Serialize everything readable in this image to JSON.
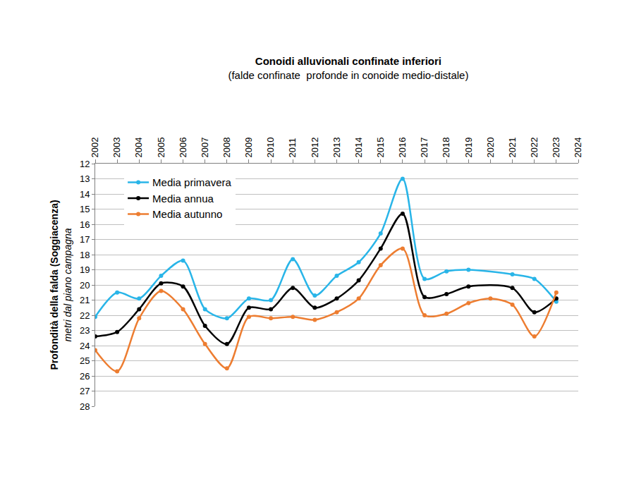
{
  "chart_data": {
    "type": "line",
    "title": "Conoidi alluvionali confinate inferiori",
    "subtitle": "(falde confinate  profonde in conoide medio-distale)",
    "ylabel": "Profondità della falda (Soggiacenza)",
    "ylabel_sub": "metri dal piano campagna",
    "x": [
      2002,
      2003,
      2004,
      2005,
      2006,
      2007,
      2008,
      2009,
      2010,
      2011,
      2012,
      2013,
      2014,
      2015,
      2016,
      2017,
      2018,
      2019,
      2020,
      2021,
      2022,
      2023
    ],
    "series": [
      {
        "name": "Media primavera",
        "color": "#29b5e8",
        "values": [
          22.1,
          20.5,
          20.9,
          19.4,
          18.4,
          21.6,
          22.2,
          20.9,
          21.0,
          18.3,
          20.7,
          19.4,
          18.5,
          16.6,
          13.0,
          19.6,
          19.1,
          19.0,
          null,
          19.3,
          19.6,
          21.1
        ]
      },
      {
        "name": "Media annua",
        "color": "#000000",
        "values": [
          23.4,
          23.1,
          21.6,
          19.9,
          20.1,
          22.7,
          23.9,
          21.5,
          21.6,
          20.2,
          21.5,
          20.9,
          19.7,
          17.6,
          15.3,
          20.8,
          20.6,
          20.1,
          null,
          20.2,
          21.8,
          20.9
        ]
      },
      {
        "name": "Media autunno",
        "color": "#ed7d31",
        "values": [
          24.3,
          25.7,
          22.2,
          20.4,
          21.6,
          23.9,
          25.5,
          22.1,
          22.2,
          22.1,
          22.3,
          21.8,
          20.9,
          18.7,
          17.6,
          22.0,
          21.9,
          21.2,
          20.9,
          21.3,
          23.4,
          20.5
        ]
      }
    ],
    "xlim": [
      2002,
      2024
    ],
    "xticks": [
      2002,
      2003,
      2004,
      2005,
      2006,
      2007,
      2008,
      2009,
      2010,
      2011,
      2012,
      2013,
      2014,
      2015,
      2016,
      2017,
      2018,
      2019,
      2020,
      2021,
      2022,
      2023,
      2024
    ],
    "ylim": [
      28,
      12
    ],
    "yticks": [
      12,
      13,
      14,
      15,
      16,
      17,
      18,
      19,
      20,
      21,
      22,
      23,
      24,
      25,
      26,
      27,
      28
    ],
    "grid": true,
    "legend": "upper left",
    "marker": "circle",
    "line_style": "smooth"
  }
}
